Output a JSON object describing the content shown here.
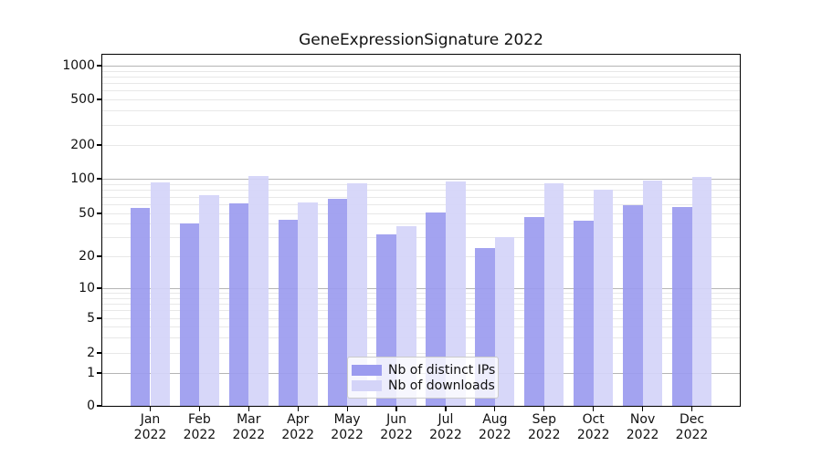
{
  "chart_data": {
    "type": "bar",
    "title": "GeneExpressionSignature 2022",
    "categories": [
      "Jan",
      "Feb",
      "Mar",
      "Apr",
      "May",
      "Jun",
      "Jul",
      "Aug",
      "Sep",
      "Oct",
      "Nov",
      "Dec"
    ],
    "year_label": "2022",
    "series": [
      {
        "name": "Nb of distinct IPs",
        "color": "#9b9bef",
        "values": [
          56,
          40,
          61,
          44,
          67,
          32,
          51,
          24,
          46,
          43,
          59,
          57
        ]
      },
      {
        "name": "Nb of downloads",
        "color": "#d4d4f8",
        "values": [
          93,
          72,
          106,
          62,
          91,
          38,
          95,
          30,
          91,
          81,
          96,
          103
        ]
      }
    ],
    "y_ticks": [
      0,
      1,
      2,
      5,
      10,
      20,
      50,
      100,
      200,
      500,
      1000
    ],
    "y_scale": "symlog",
    "ylim": [
      0,
      1200
    ],
    "grid": true,
    "grid_major_values": [
      1,
      10,
      100,
      1000
    ],
    "grid_minor_values": [
      2,
      3,
      4,
      5,
      6,
      7,
      8,
      9,
      20,
      30,
      40,
      50,
      60,
      70,
      80,
      90,
      200,
      300,
      400,
      500,
      600,
      700,
      800,
      900
    ],
    "legend_position": "lower center inside",
    "colors": {
      "major_grid": "#b5b5b5",
      "minor_grid": "#e8e8e8",
      "axis": "#000000",
      "text": "#111111"
    }
  }
}
